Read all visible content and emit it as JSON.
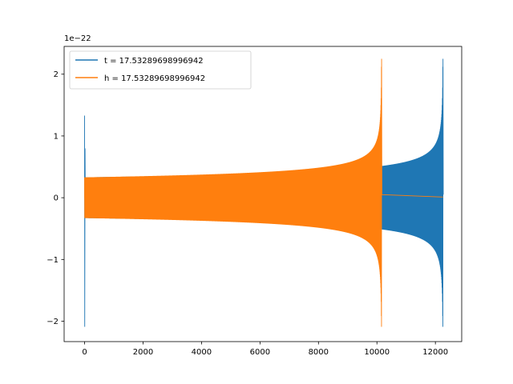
{
  "chart_data": {
    "type": "line",
    "offset_label": "1e−22",
    "xlim": [
      -700,
      12900
    ],
    "ylim": [
      -2.33,
      2.45
    ],
    "x_ticks": [
      0,
      2000,
      4000,
      6000,
      8000,
      10000,
      12000
    ],
    "y_ticks": [
      -2,
      -1,
      0,
      1,
      2
    ],
    "grid": false,
    "legend_position": "upper-left",
    "series": [
      {
        "name": "t = 17.53289698996942",
        "color": "#1f77b4",
        "x_start": 0,
        "x_end": 12260,
        "amplitude_start": 0.33,
        "peak_max": 2.25,
        "peak_min": -2.09,
        "initial_spike_max": 1.33,
        "initial_spike_min": -2.09
      },
      {
        "name": "h = 17.53289698996942",
        "color": "#ff7f0e",
        "x_start": 0,
        "x_end": 10160,
        "amplitude_start": 0.33,
        "peak_max": 2.25,
        "peak_min": -2.09,
        "tail_end": 12260,
        "tail_value": 0.01
      }
    ]
  }
}
